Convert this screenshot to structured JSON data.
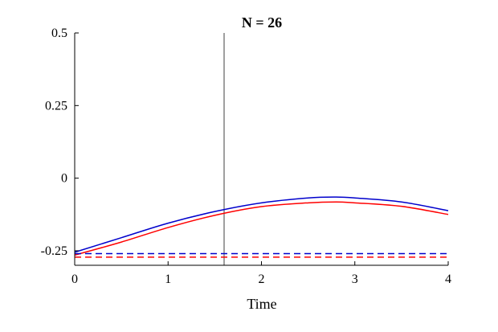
{
  "chart_data": {
    "type": "line",
    "title": "N = 26",
    "xlabel": "Time",
    "ylabel": "",
    "xlim": [
      0,
      4
    ],
    "ylim": [
      -0.3,
      0.5
    ],
    "x_ticks": [
      0,
      1,
      2,
      3,
      4
    ],
    "x_tick_labels": [
      "0",
      "1",
      "2",
      "3",
      "4"
    ],
    "y_ticks": [
      -0.25,
      0,
      0.25,
      0.5
    ],
    "y_tick_labels": [
      "-0.25",
      "0",
      "0.25",
      "0.5"
    ],
    "grid": false,
    "vertical_marker": {
      "x": 1.6,
      "color": "#808080"
    },
    "series": [
      {
        "color": "#0000cc",
        "style": "solid",
        "x": [
          0,
          0.5,
          1,
          1.5,
          2,
          2.5,
          2.8,
          3,
          3.5,
          4
        ],
        "y": [
          -0.255,
          -0.205,
          -0.155,
          -0.115,
          -0.085,
          -0.068,
          -0.065,
          -0.068,
          -0.082,
          -0.112
        ]
      },
      {
        "color": "#ff0000",
        "style": "solid",
        "x": [
          0,
          0.5,
          1,
          1.5,
          2,
          2.5,
          2.8,
          3,
          3.5,
          4
        ],
        "y": [
          -0.265,
          -0.22,
          -0.17,
          -0.128,
          -0.098,
          -0.085,
          -0.082,
          -0.085,
          -0.097,
          -0.125
        ]
      },
      {
        "color": "#0000cc",
        "style": "dashed",
        "x": [
          0,
          4
        ],
        "y": [
          -0.26,
          -0.26
        ]
      },
      {
        "color": "#ff0000",
        "style": "dashed",
        "x": [
          0,
          4
        ],
        "y": [
          -0.272,
          -0.272
        ]
      }
    ]
  }
}
